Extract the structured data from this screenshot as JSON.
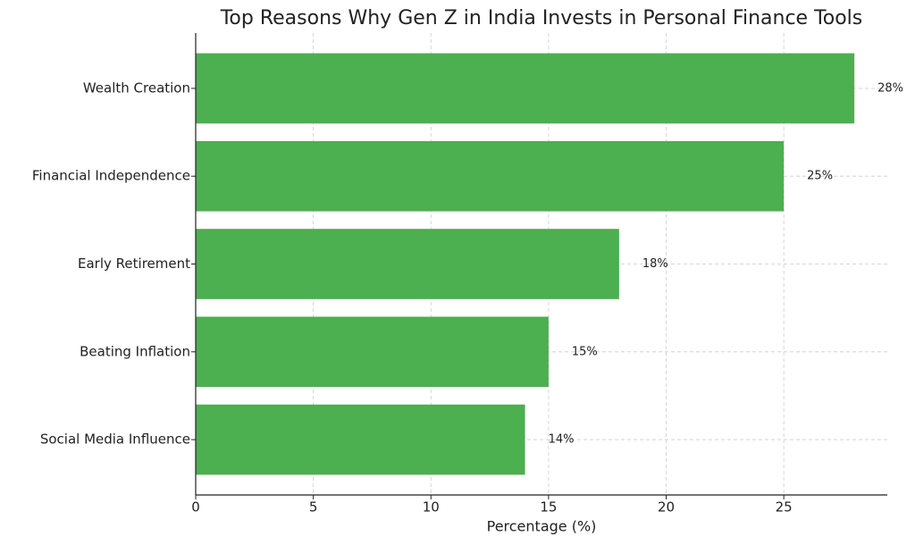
{
  "chart_data": {
    "type": "bar",
    "orientation": "horizontal",
    "title": "Top Reasons Why Gen Z in India Invests in Personal Finance Tools",
    "xlabel": "Percentage (%)",
    "categories": [
      "Wealth Creation",
      "Financial Independence",
      "Early Retirement",
      "Beating Inflation",
      "Social Media Influence"
    ],
    "values": [
      28,
      25,
      18,
      15,
      14
    ],
    "value_labels": [
      "28%",
      "25%",
      "18%",
      "15%",
      "14%"
    ],
    "color": "#4caf50",
    "xlim": [
      0,
      29.4
    ],
    "xticks": [
      0,
      5,
      10,
      15,
      20,
      25
    ],
    "grid": true
  }
}
